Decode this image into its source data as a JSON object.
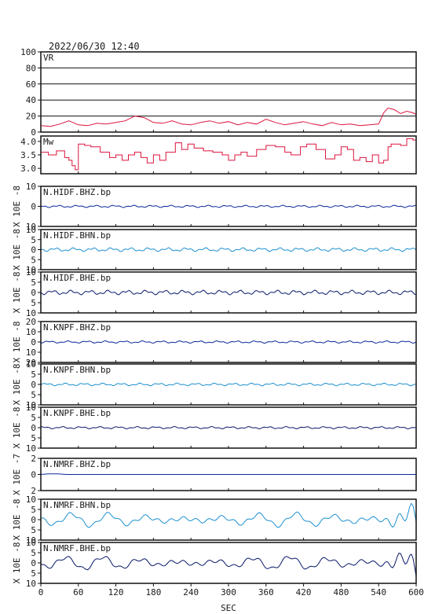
{
  "header": {
    "timestamp": "2022/06/30 12:40"
  },
  "chart_data": {
    "type": "line",
    "xlabel": "SEC",
    "xlim": [
      0,
      600
    ],
    "xticks": [
      0,
      60,
      120,
      180,
      240,
      300,
      360,
      420,
      480,
      540,
      600
    ],
    "panels": [
      {
        "label": "VR",
        "ylim": [
          0,
          100
        ],
        "yticks": [
          0,
          20,
          40,
          60,
          80,
          100
        ],
        "ytick_labels": [
          "0",
          "20",
          "40",
          "60",
          "80",
          "100"
        ],
        "ylabel": "",
        "grid": true,
        "color": "#dc143c",
        "style": "line",
        "x": [
          0,
          15,
          30,
          45,
          60,
          75,
          90,
          105,
          120,
          135,
          150,
          165,
          180,
          195,
          210,
          225,
          240,
          255,
          270,
          285,
          300,
          315,
          330,
          345,
          360,
          375,
          390,
          405,
          420,
          435,
          450,
          465,
          480,
          495,
          510,
          525,
          540,
          548,
          555,
          565,
          575,
          585,
          595,
          600
        ],
        "y": [
          8,
          7,
          10,
          14,
          9,
          8,
          11,
          10,
          12,
          14,
          20,
          18,
          12,
          11,
          14,
          10,
          9,
          12,
          14,
          11,
          13,
          9,
          12,
          10,
          16,
          12,
          9,
          11,
          13,
          10,
          8,
          12,
          9,
          10,
          8,
          9,
          10,
          24,
          30,
          28,
          23,
          26,
          24,
          22
        ]
      },
      {
        "label": "Mw",
        "ylim": [
          2.8,
          4.2
        ],
        "yticks": [
          3.0,
          3.5,
          4.0
        ],
        "ytick_labels": [
          "3.0",
          "3.5",
          "4.0"
        ],
        "ylabel": "",
        "grid": false,
        "color": "#dc143c",
        "style": "step",
        "x": [
          0,
          12,
          25,
          38,
          45,
          50,
          55,
          60,
          70,
          80,
          95,
          110,
          120,
          130,
          140,
          150,
          160,
          170,
          180,
          190,
          200,
          215,
          225,
          235,
          245,
          260,
          275,
          290,
          300,
          310,
          320,
          330,
          345,
          360,
          375,
          390,
          400,
          415,
          425,
          440,
          455,
          470,
          480,
          490,
          500,
          510,
          520,
          530,
          540,
          548,
          555,
          560,
          575,
          585,
          595,
          600
        ],
        "y": [
          3.6,
          3.5,
          3.65,
          3.4,
          3.3,
          3.1,
          2.95,
          3.9,
          3.85,
          3.8,
          3.6,
          3.4,
          3.5,
          3.3,
          3.5,
          3.6,
          3.4,
          3.2,
          3.5,
          3.3,
          3.6,
          3.95,
          3.7,
          3.9,
          3.75,
          3.65,
          3.6,
          3.5,
          3.3,
          3.5,
          3.6,
          3.45,
          3.7,
          3.85,
          3.8,
          3.6,
          3.5,
          3.8,
          3.9,
          3.7,
          3.35,
          3.5,
          3.8,
          3.7,
          3.3,
          3.4,
          3.25,
          3.5,
          3.2,
          3.3,
          3.8,
          3.9,
          3.85,
          4.1,
          4.05,
          4.1
        ]
      },
      {
        "label": "N.HIDF.BHZ.bp",
        "ylim": [
          -10,
          10
        ],
        "yticks": [
          -10,
          0,
          10
        ],
        "ytick_labels": [
          "10",
          "0",
          "10"
        ],
        "ylabel": "X 10E -8",
        "grid": false,
        "color": "#0a2a9a",
        "amp": 0.6,
        "style": "wave"
      },
      {
        "label": "N.HIDF.BHN.bp",
        "ylim": [
          -10,
          10
        ],
        "yticks": [
          -10,
          -5,
          0,
          5,
          10
        ],
        "ytick_labels": [
          "10",
          "5",
          "0",
          "5",
          "10"
        ],
        "ylabel": "X 10E -8",
        "grid": false,
        "color": "#1e90d0",
        "amp": 1.0,
        "style": "wave"
      },
      {
        "label": "N.HIDF.BHE.bp",
        "ylim": [
          -10,
          10
        ],
        "yticks": [
          -10,
          -5,
          0,
          5,
          10
        ],
        "ytick_labels": [
          "10",
          "5",
          "0",
          "5",
          "10"
        ],
        "ylabel": "X 10E -8",
        "grid": false,
        "color": "#0a1a6a",
        "amp": 1.2,
        "style": "wave"
      },
      {
        "label": "N.KNPF.BHZ.bp",
        "ylim": [
          -20,
          20
        ],
        "yticks": [
          -20,
          -10,
          0,
          10,
          20
        ],
        "ytick_labels": [
          "20",
          "10",
          "0",
          "10",
          "20"
        ],
        "ylabel": "X 10E -8",
        "grid": false,
        "color": "#0a2a9a",
        "amp": 0.6,
        "style": "wave"
      },
      {
        "label": "N.KNPF.BHN.bp",
        "ylim": [
          -10,
          10
        ],
        "yticks": [
          -10,
          -5,
          0,
          5,
          10
        ],
        "ytick_labels": [
          "10",
          "5",
          "0",
          "5",
          "10"
        ],
        "ylabel": "X 10E -8",
        "grid": false,
        "color": "#1e90d0",
        "amp": 0.7,
        "style": "wave"
      },
      {
        "label": "N.KNPF.BHE.bp",
        "ylim": [
          -10,
          10
        ],
        "yticks": [
          -10,
          -5,
          0,
          5,
          10
        ],
        "ytick_labels": [
          "10",
          "5",
          "0",
          "5",
          "10"
        ],
        "ylabel": "X 10E -8",
        "grid": false,
        "color": "#0a1a6a",
        "amp": 0.6,
        "style": "wave"
      },
      {
        "label": "N.NMRF.BHZ.bp",
        "ylim": [
          -2,
          2
        ],
        "yticks": [
          -2,
          0,
          2
        ],
        "ytick_labels": [
          "2",
          "0",
          "2"
        ],
        "ylabel": "X 10E -7",
        "grid": false,
        "color": "#0a2a9a",
        "amp": 0.1,
        "style": "wave"
      },
      {
        "label": "N.NMRF.BHN.bp",
        "ylim": [
          -10,
          10
        ],
        "yticks": [
          -10,
          -5,
          0,
          5,
          10
        ],
        "ytick_labels": [
          "10",
          "5",
          "0",
          "5",
          "10"
        ],
        "ylabel": "X 10E -8",
        "grid": false,
        "color": "#1e90d0",
        "amp": 3.0,
        "style": "wave"
      },
      {
        "label": "N.NMRF.BHE.bp",
        "ylim": [
          -10,
          10
        ],
        "yticks": [
          -10,
          -5,
          0,
          5,
          10
        ],
        "ytick_labels": [
          "10",
          "5",
          "0",
          "5",
          "10"
        ],
        "ylabel": "X 10E -8",
        "grid": false,
        "color": "#0a1a6a",
        "amp": 3.0,
        "style": "wave"
      }
    ]
  }
}
